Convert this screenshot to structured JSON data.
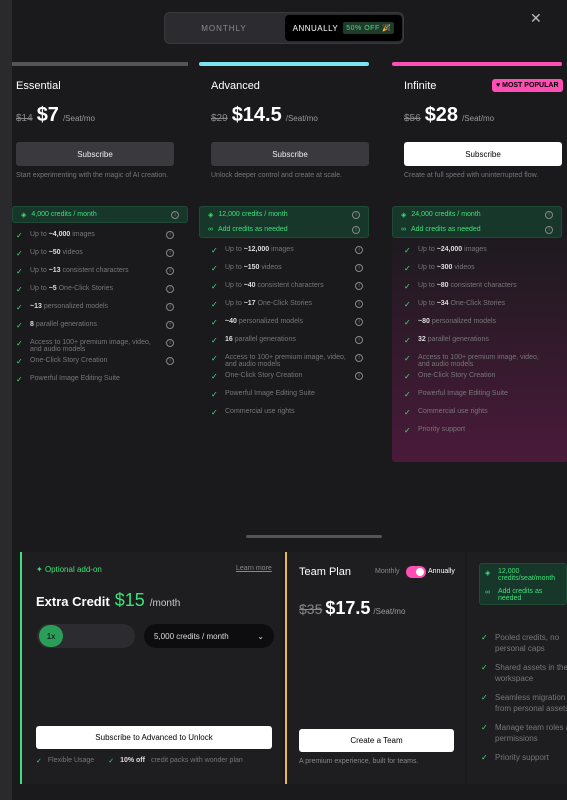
{
  "toggle": {
    "monthly": "MONTHLY",
    "annually": "ANNUALLY",
    "off": "50% OFF 🎉"
  },
  "plans": [
    {
      "name": "Essential",
      "old": "$14",
      "price": "$7",
      "unit": "/Seat/mo",
      "button": "Subscribe",
      "tagline": "Start experimenting with the magic of AI creation.",
      "credits": [
        "4,000 credits / month"
      ],
      "color": "#555",
      "features": [
        [
          "Up to ",
          "~4,000",
          " images"
        ],
        [
          "Up to ",
          "~50",
          " videos"
        ],
        [
          "Up to ",
          "~13",
          " consistent characters"
        ],
        [
          "Up to ",
          "~5",
          " One-Click Stories"
        ],
        [
          "",
          "~13",
          " personalized models"
        ],
        [
          "",
          "8",
          " parallel generations"
        ],
        [
          "Access to 100+ premium image, video, and audio models",
          "",
          ""
        ],
        [
          "One-Click Story Creation",
          "",
          ""
        ],
        [
          "Powerful Image Editing Suite",
          "",
          ""
        ]
      ]
    },
    {
      "name": "Advanced",
      "old": "$29",
      "price": "$14.5",
      "unit": "/Seat/mo",
      "button": "Subscribe",
      "tagline": "Unlock deeper control and create at scale.",
      "credits": [
        "12,000 credits / month",
        "Add credits as needed"
      ],
      "color": "#7de3f0",
      "features": [
        [
          "Up to ",
          "~12,000",
          " images"
        ],
        [
          "Up to ",
          "~150",
          " videos"
        ],
        [
          "Up to ",
          "~40",
          " consistent characters"
        ],
        [
          "Up to ",
          "~17",
          " One-Click Stories"
        ],
        [
          "",
          "~40",
          " personalized models"
        ],
        [
          "",
          "16",
          " parallel generations"
        ],
        [
          "Access to 100+ premium image, video, and audio models",
          "",
          ""
        ],
        [
          "One-Click Story Creation",
          "",
          ""
        ],
        [
          "Powerful Image Editing Suite",
          "",
          ""
        ],
        [
          "Commercial use rights",
          "",
          ""
        ]
      ]
    },
    {
      "name": "Infinite",
      "old": "$56",
      "price": "$28",
      "unit": "/Seat/mo",
      "button": "Subscribe",
      "tagline": "Create at full speed with uninterrupted flow.",
      "badge": "MOST POPULAR",
      "credits": [
        "24,000 credits / month",
        "Add credits as needed"
      ],
      "color": "#ff4fb4",
      "features": [
        [
          "Up to ",
          "~24,000",
          " images"
        ],
        [
          "Up to ",
          "~300",
          " videos"
        ],
        [
          "Up to ",
          "~80",
          " consistent characters"
        ],
        [
          "Up to ",
          "~34",
          " One-Click Stories"
        ],
        [
          "",
          "~80",
          " personalized models"
        ],
        [
          "",
          "32",
          " parallel generations"
        ],
        [
          "Access to 100+ premium image, video, and audio models",
          "",
          ""
        ],
        [
          "One-Click Story Creation",
          "",
          ""
        ],
        [
          "Powerful Image Editing Suite",
          "",
          ""
        ],
        [
          "Commercial use rights",
          "",
          ""
        ],
        [
          "Priority support",
          "",
          ""
        ]
      ]
    }
  ],
  "addon": {
    "tag": "Optional add-on",
    "learn": "Learn more",
    "title": "Extra Credit",
    "price": "$15",
    "per": "/month",
    "multiplier": "1x",
    "select": "5,000 credits / month",
    "button": "Subscribe to Advanced to Unlock",
    "foot1": "Flexible Usage",
    "foot2_bold": "10% off",
    "foot2": " credit packs with wonder plan"
  },
  "team": {
    "title": "Team Plan",
    "monthly": "Monthly",
    "annually": "Annually",
    "old": "$35",
    "price": "$17.5",
    "unit": "/Seat/mo",
    "button": "Create a Team",
    "foot": "A premium experience, built for teams.",
    "credits": "12,000 credits/seat/month",
    "add": "Add credits as needed",
    "features": [
      "Pooled credits, no personal caps",
      "Shared assets in the workspace",
      "Seamless migration from personal assets",
      "Manage team roles and permissions",
      "Priority support"
    ]
  }
}
